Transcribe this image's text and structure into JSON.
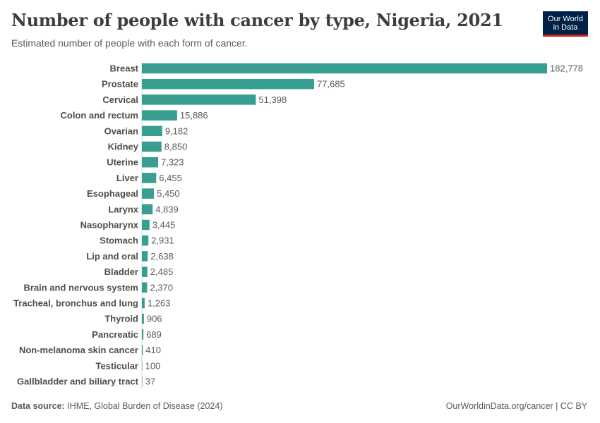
{
  "header": {
    "title": "Number of people with cancer by type, Nigeria, 2021",
    "subtitle": "Estimated number of people with each form of cancer."
  },
  "logo": {
    "line1": "Our World",
    "line2": "in Data"
  },
  "footer": {
    "source_label": "Data source:",
    "source_text": "IHME, Global Burden of Disease (2024)",
    "link": "OurWorldinData.org/cancer | CC BY"
  },
  "colors": {
    "bar": "#389e91",
    "brand": "#002147",
    "accent": "#ce261e"
  },
  "chart_data": {
    "type": "bar",
    "orientation": "horizontal",
    "title": "Number of people with cancer by type, Nigeria, 2021",
    "categories": [
      "Breast",
      "Prostate",
      "Cervical",
      "Colon and rectum",
      "Ovarian",
      "Kidney",
      "Uterine",
      "Liver",
      "Esophageal",
      "Larynx",
      "Nasopharynx",
      "Stomach",
      "Lip and oral",
      "Bladder",
      "Brain and nervous system",
      "Tracheal, bronchus and lung",
      "Thyroid",
      "Pancreatic",
      "Non-melanoma skin cancer",
      "Testicular",
      "Gallbladder and biliary tract"
    ],
    "values": [
      182778,
      77685,
      51398,
      15886,
      9182,
      8850,
      7323,
      6455,
      5450,
      4839,
      3445,
      2931,
      2638,
      2485,
      2370,
      1263,
      906,
      689,
      410,
      100,
      37
    ],
    "labels": [
      "182,778",
      "77,685",
      "51,398",
      "15,886",
      "9,182",
      "8,850",
      "7,323",
      "6,455",
      "5,450",
      "4,839",
      "3,445",
      "2,931",
      "2,638",
      "2,485",
      "2,370",
      "1,263",
      "906",
      "689",
      "410",
      "100",
      "37"
    ],
    "xlim": [
      0,
      182778
    ],
    "xlabel": "",
    "ylabel": "",
    "grid": false
  }
}
